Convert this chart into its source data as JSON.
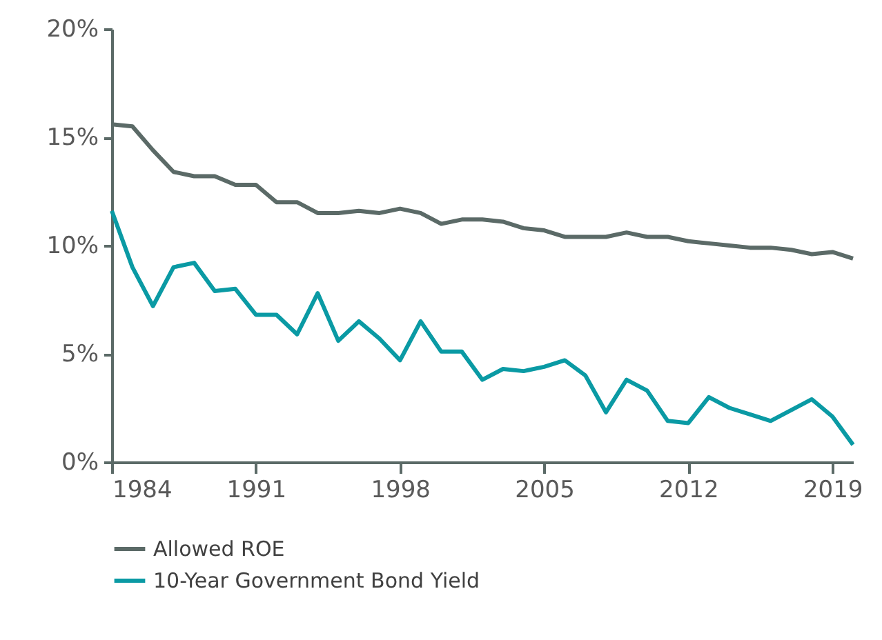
{
  "chart_data": {
    "type": "line",
    "x": [
      1984,
      1985,
      1986,
      1987,
      1988,
      1989,
      1990,
      1991,
      1992,
      1993,
      1994,
      1995,
      1996,
      1997,
      1998,
      1999,
      2000,
      2001,
      2002,
      2003,
      2004,
      2005,
      2006,
      2007,
      2008,
      2009,
      2010,
      2011,
      2012,
      2013,
      2014,
      2015,
      2016,
      2017,
      2018,
      2019,
      2020
    ],
    "series": [
      {
        "name": "Allowed ROE",
        "color": "#5b6a67",
        "values": [
          15.6,
          15.5,
          14.4,
          13.4,
          13.2,
          13.2,
          12.8,
          12.8,
          12.0,
          12.0,
          11.5,
          11.5,
          11.6,
          11.5,
          11.7,
          11.5,
          11.0,
          11.2,
          11.2,
          11.1,
          10.8,
          10.7,
          10.4,
          10.4,
          10.4,
          10.6,
          10.4,
          10.4,
          10.2,
          10.1,
          10.0,
          9.9,
          9.9,
          9.8,
          9.6,
          9.7,
          9.4
        ]
      },
      {
        "name": "10-Year Government Bond Yield",
        "color": "#0a9aa4",
        "values": [
          11.6,
          9.0,
          7.2,
          9.0,
          9.2,
          7.9,
          8.0,
          6.8,
          6.8,
          5.9,
          7.8,
          5.6,
          6.5,
          5.7,
          4.7,
          6.5,
          5.1,
          5.1,
          3.8,
          4.3,
          4.2,
          4.4,
          4.7,
          4.0,
          2.3,
          3.8,
          3.3,
          1.9,
          1.8,
          3.0,
          2.5,
          2.2,
          1.9,
          2.4,
          2.9,
          2.1,
          0.8
        ]
      }
    ],
    "xlim": [
      1984,
      2020
    ],
    "xticks": [
      1984,
      1991,
      1998,
      2005,
      2012,
      2019
    ],
    "ylim": [
      0,
      20
    ],
    "yticks": [
      {
        "value": 0,
        "label": "0%"
      },
      {
        "value": 5,
        "label": "5%"
      },
      {
        "value": 10,
        "label": "10%"
      },
      {
        "value": 15,
        "label": "15%"
      },
      {
        "value": 20,
        "label": "20%"
      }
    ],
    "legend": "bottom",
    "grid": false
  }
}
